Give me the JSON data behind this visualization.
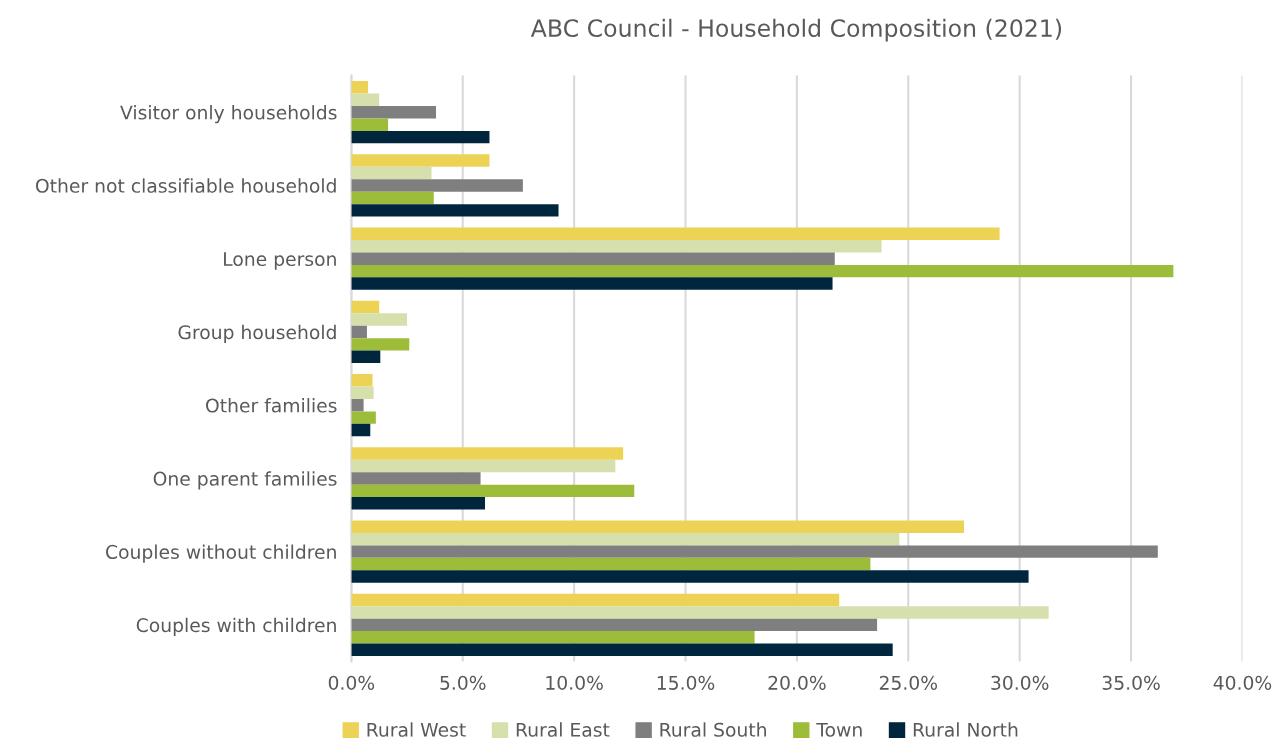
{
  "chart_data": {
    "type": "bar",
    "orientation": "horizontal",
    "title": "ABC Council - Household Composition (2021)",
    "categories": [
      "Visitor only households",
      "Other not classifiable household",
      "Lone person",
      "Group household",
      "Other families",
      "One parent families",
      "Couples without children",
      "Couples with children"
    ],
    "series": [
      {
        "name": "Rural West",
        "color": "#edd355",
        "values": [
          0.75,
          6.2,
          29.1,
          1.25,
          0.95,
          12.2,
          27.5,
          21.9
        ]
      },
      {
        "name": "Rural East",
        "color": "#d5e0ad",
        "values": [
          1.25,
          3.6,
          23.8,
          2.5,
          1.0,
          11.85,
          24.6,
          31.3
        ]
      },
      {
        "name": "Rural South",
        "color": "#7f7f7f",
        "values": [
          3.8,
          7.7,
          21.7,
          0.7,
          0.55,
          5.8,
          36.2,
          23.6
        ]
      },
      {
        "name": "Town",
        "color": "#9dbd3a",
        "values": [
          1.65,
          3.7,
          36.9,
          2.6,
          1.1,
          12.7,
          23.3,
          18.1
        ]
      },
      {
        "name": "Rural North",
        "color": "#00263e",
        "values": [
          6.2,
          9.3,
          21.6,
          1.3,
          0.85,
          6.0,
          30.4,
          24.3
        ]
      }
    ],
    "xlim": [
      0,
      40
    ],
    "xticks": [
      {
        "value": 0,
        "label": "0.0%"
      },
      {
        "value": 5,
        "label": "5.0%"
      },
      {
        "value": 10,
        "label": "10.0%"
      },
      {
        "value": 15,
        "label": "15.0%"
      },
      {
        "value": 20,
        "label": "20.0%"
      },
      {
        "value": 25,
        "label": "25.0%"
      },
      {
        "value": 30,
        "label": "30.0%"
      },
      {
        "value": 35,
        "label": "35.0%"
      },
      {
        "value": 40,
        "label": "40.0%"
      }
    ],
    "grid": "x",
    "legend": "bottom"
  }
}
